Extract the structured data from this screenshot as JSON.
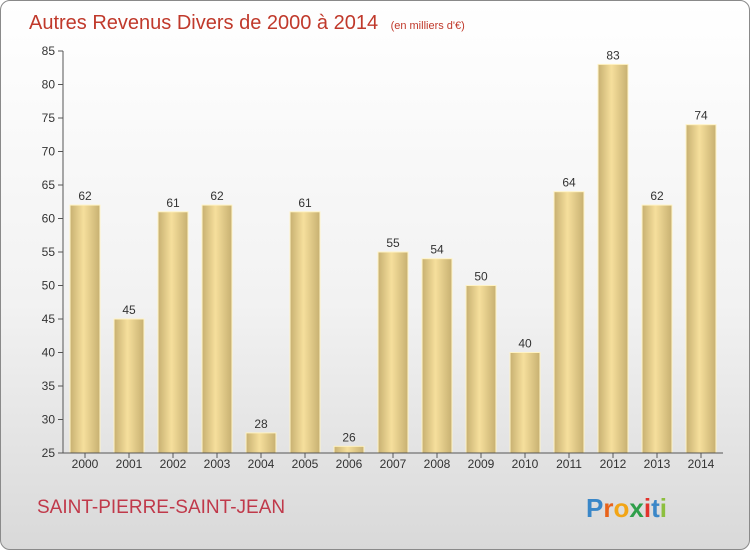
{
  "chart_data": {
    "type": "bar",
    "title": "Autres Revenus Divers de 2000 à 2014",
    "subtitle": "(en milliers d'€)",
    "categories": [
      "2000",
      "2001",
      "2002",
      "2003",
      "2004",
      "2005",
      "2006",
      "2007",
      "2008",
      "2009",
      "2010",
      "2011",
      "2012",
      "2013",
      "2014"
    ],
    "values": [
      62,
      45,
      61,
      62,
      28,
      61,
      26,
      55,
      54,
      50,
      40,
      64,
      83,
      62,
      74
    ],
    "ylim": [
      25,
      85
    ],
    "yticks": [
      25,
      30,
      35,
      40,
      45,
      50,
      55,
      60,
      65,
      70,
      75,
      80,
      85
    ],
    "grid": false,
    "legend": "none"
  },
  "footer": {
    "place": "SAINT-PIERRE-SAINT-JEAN",
    "logo_letters": [
      "P",
      "r",
      "o",
      "x",
      "i",
      "t",
      "i"
    ]
  },
  "colors": {
    "title": "#c0392b",
    "place": "#c0394a",
    "bar_light": "#f6df9c",
    "bar_dark": "#c7b071",
    "bar_border": "#fff3c4",
    "axis": "#555555",
    "logo": [
      "#3a87c8",
      "#e8631a",
      "#f2a516",
      "#2f9f4a",
      "#e2332c",
      "#3a87c8",
      "#8dbf3f"
    ]
  }
}
